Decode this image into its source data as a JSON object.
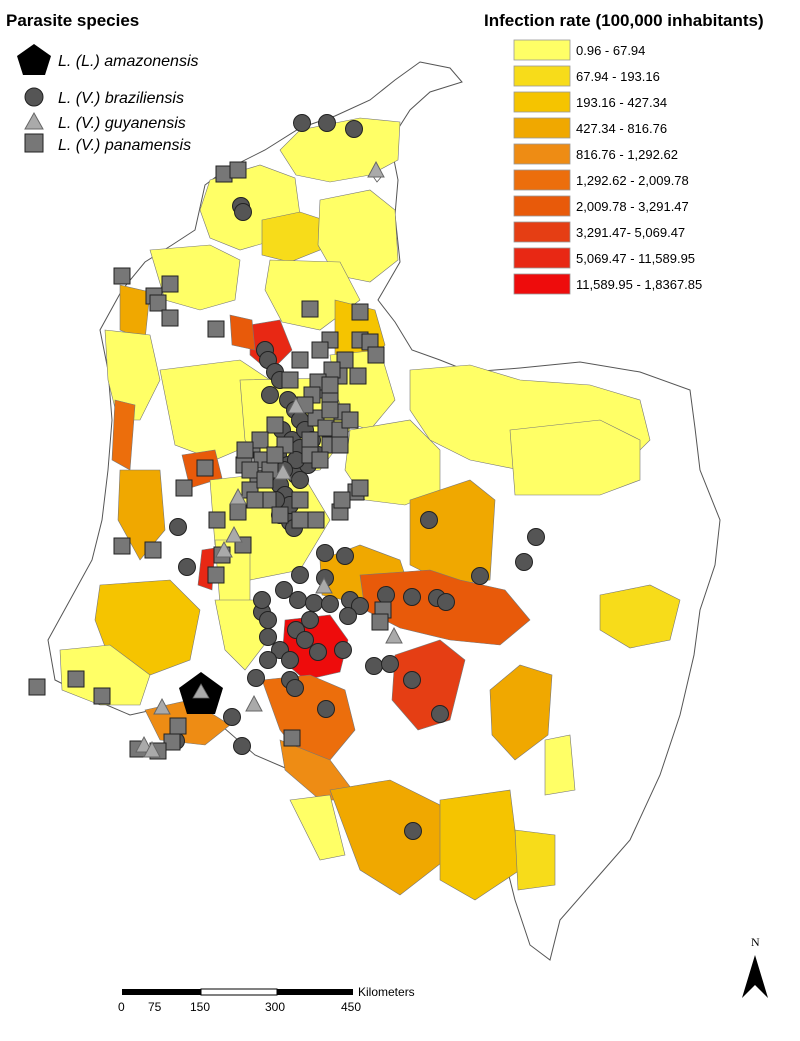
{
  "species_legend": {
    "title": "Parasite species",
    "items": [
      {
        "label": "L. (L.) amazonensis",
        "symbol": "pentagon",
        "color": "#000000"
      },
      {
        "label": "L. (V.) braziliensis",
        "symbol": "circle",
        "color": "#555555"
      },
      {
        "label": "L. (V.) guyanensis",
        "symbol": "triangle",
        "color": "#aaaaaa"
      },
      {
        "label": "L. (V.) panamensis",
        "symbol": "square",
        "color": "#777777"
      }
    ]
  },
  "rate_legend": {
    "title": "Infection rate (100,000 inhabitants)",
    "classes": [
      {
        "label": "0.96 - 67.94",
        "color": "#ffff66"
      },
      {
        "label": "67.94 - 193.16",
        "color": "#f7dc1a"
      },
      {
        "label": "193.16 - 427.34",
        "color": "#f5c400"
      },
      {
        "label": "427.34 - 816.76",
        "color": "#f0a800"
      },
      {
        "label": "816.76 - 1,292.62",
        "color": "#ee8c14"
      },
      {
        "label": "1,292.62 - 2,009.78",
        "color": "#ec6e0c"
      },
      {
        "label": "2,009.78 - 3,291.47",
        "color": "#e85a0a"
      },
      {
        "label": "3,291.47- 5,069.47",
        "color": "#e53e14"
      },
      {
        "label": "5,069.47 - 11,589.95",
        "color": "#e82814"
      },
      {
        "label": "11,589.95 - 1,8367.85",
        "color": "#ee0c0c"
      }
    ]
  },
  "scale_bar": {
    "unit": "Kilometers",
    "ticks": [
      "0",
      "75",
      "150",
      "300",
      "450"
    ]
  },
  "north_arrow": {
    "label": "N"
  }
}
